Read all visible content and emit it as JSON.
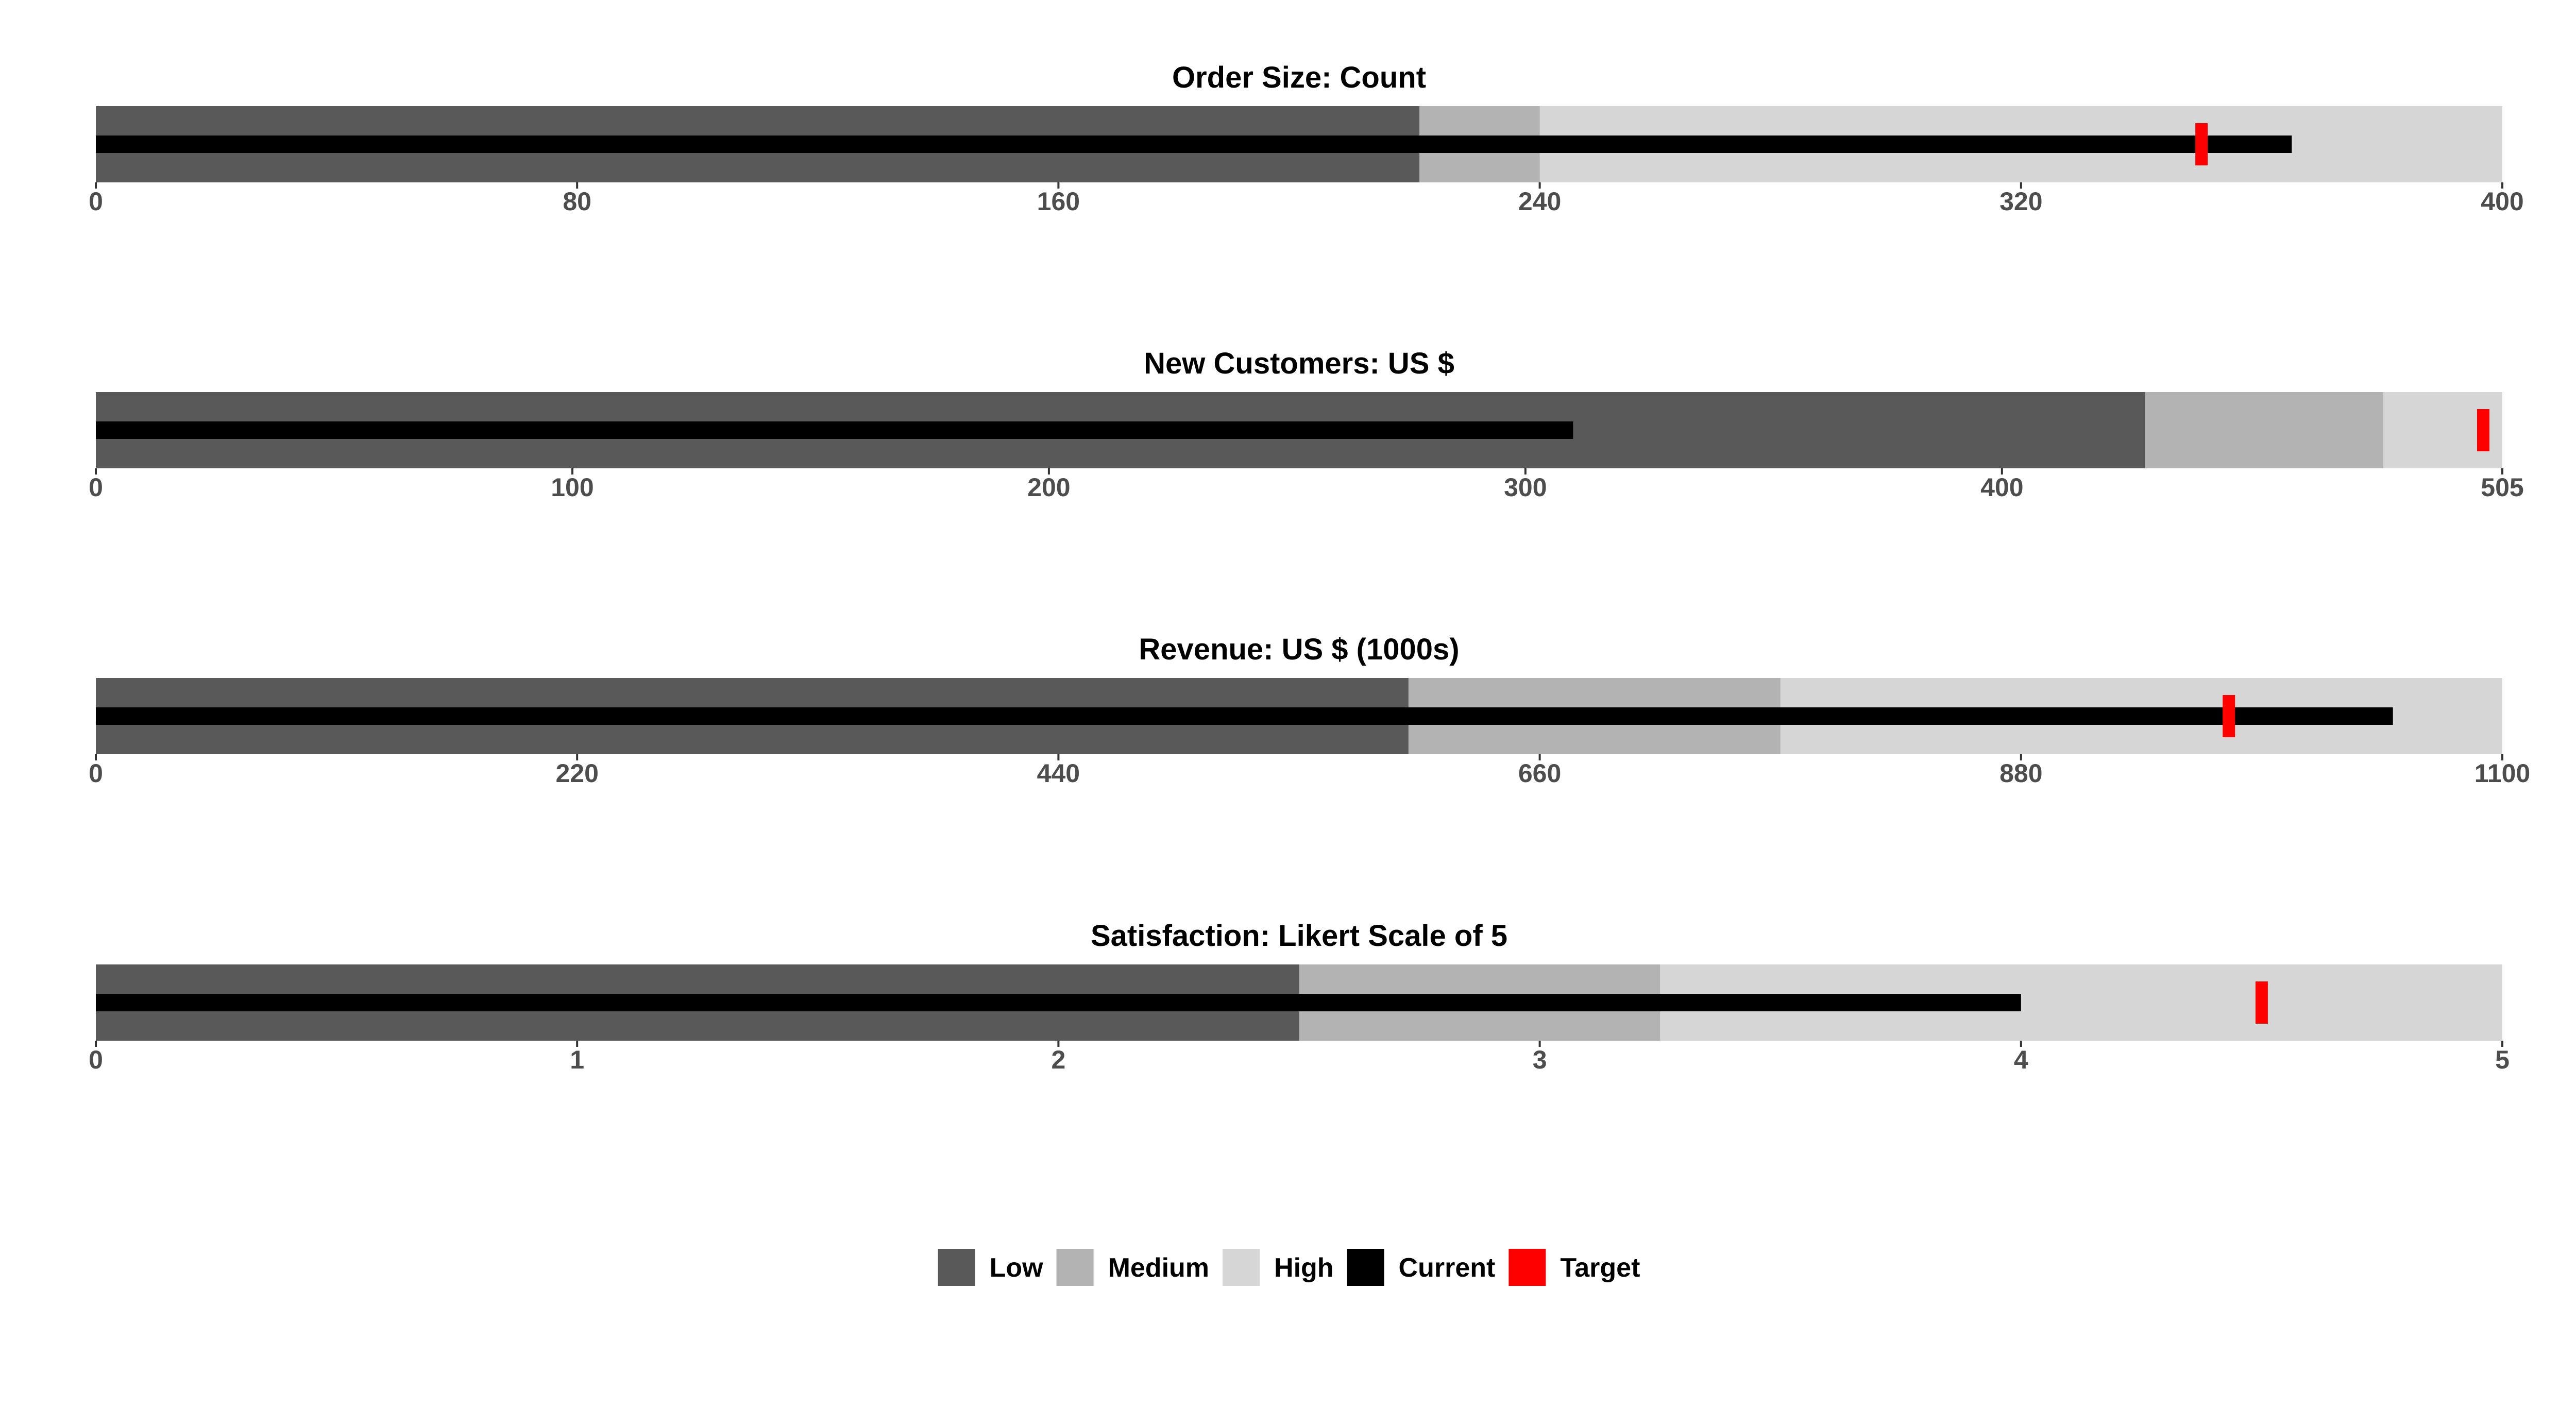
{
  "chart_data": {
    "type": "bullet",
    "legend_position": "bottom",
    "grid": false,
    "colors": {
      "low": "#595959",
      "medium": "#b3b3b3",
      "high": "#d6d6d6",
      "current": "#000000",
      "target": "#ff0000"
    },
    "legend": [
      {
        "key": "low",
        "label": "Low"
      },
      {
        "key": "medium",
        "label": "Medium"
      },
      {
        "key": "high",
        "label": "High"
      },
      {
        "key": "current",
        "label": "Current"
      },
      {
        "key": "target",
        "label": "Target"
      }
    ],
    "panels": [
      {
        "title": "Order Size: Count",
        "xlim": [
          0,
          400
        ],
        "ticks": [
          0,
          80,
          160,
          240,
          320,
          400
        ],
        "ranges": {
          "low": 220,
          "medium": 240,
          "high": 400
        },
        "current": 365,
        "target": 350
      },
      {
        "title": "New Customers: US $",
        "xlim": [
          0,
          505
        ],
        "ticks": [
          0,
          100,
          200,
          300,
          400,
          505
        ],
        "ranges": {
          "low": 430,
          "medium": 480,
          "high": 505
        },
        "current": 310,
        "target": 501
      },
      {
        "title": "Revenue: US $ (1000s)",
        "xlim": [
          0,
          1100
        ],
        "ticks": [
          0,
          220,
          440,
          660,
          880,
          1100
        ],
        "ranges": {
          "low": 600,
          "medium": 770,
          "high": 1100
        },
        "current": 1050,
        "target": 975
      },
      {
        "title": "Satisfaction: Likert Scale of 5",
        "xlim": [
          0,
          5
        ],
        "ticks": [
          0,
          1,
          2,
          3,
          4,
          5
        ],
        "ranges": {
          "low": 2.5,
          "medium": 3.25,
          "high": 5
        },
        "current": 4,
        "target": 4.5
      }
    ]
  }
}
